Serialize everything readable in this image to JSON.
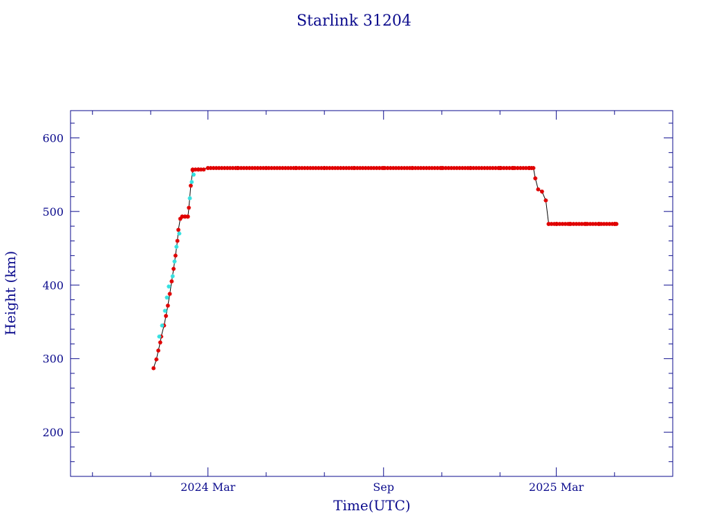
{
  "chart_data": {
    "type": "scatter",
    "title": "Starlink 31204",
    "xlabel": "Time(UTC)",
    "ylabel": "Height (km)",
    "x_tick_labels": [
      "2024 Mar",
      "Sep",
      "2025 Mar"
    ],
    "x_ticks": [
      "2024-03-01",
      "2024-09-01",
      "2025-03-01"
    ],
    "xlim": [
      "2023-10-09",
      "2025-07-01"
    ],
    "y_tick_labels": [
      "200",
      "300",
      "400",
      "500",
      "600"
    ],
    "y_ticks": [
      200,
      300,
      400,
      500,
      600
    ],
    "ylim": [
      140,
      637
    ],
    "grid": false,
    "colors": {
      "axis": "#0a0a8c",
      "primary_series": "#e00000",
      "secondary_series": "#33e0e0",
      "connector": "#000000"
    },
    "series": [
      {
        "marker_color": "#e00000",
        "points": [
          [
            "2024-01-04",
            287
          ],
          [
            "2024-01-07",
            299
          ],
          [
            "2024-01-09",
            311
          ],
          [
            "2024-01-11",
            322
          ],
          [
            "2024-01-12",
            330
          ],
          [
            "2024-01-15",
            345
          ],
          [
            "2024-01-17",
            358
          ],
          [
            "2024-01-19",
            372
          ],
          [
            "2024-01-21",
            388
          ],
          [
            "2024-01-23",
            405
          ],
          [
            "2024-01-25",
            422
          ],
          [
            "2024-01-27",
            440
          ],
          [
            "2024-01-29",
            460
          ],
          [
            "2024-01-30",
            475
          ],
          [
            "2024-02-01",
            490
          ],
          [
            "2024-02-03",
            493
          ],
          [
            "2024-02-06",
            493
          ],
          [
            "2024-02-09",
            493
          ],
          [
            "2024-02-10",
            505
          ],
          [
            "2024-02-12",
            535
          ],
          [
            "2024-02-14",
            556
          ],
          [
            "2024-02-20",
            557
          ],
          [
            "2024-03-01",
            559
          ],
          [
            "2024-04-01",
            559
          ],
          [
            "2024-05-01",
            559
          ],
          [
            "2024-06-01",
            559
          ],
          [
            "2024-07-01",
            559
          ],
          [
            "2024-08-01",
            559
          ],
          [
            "2024-09-01",
            559
          ],
          [
            "2024-10-01",
            559
          ],
          [
            "2024-11-01",
            559
          ],
          [
            "2024-12-01",
            559
          ],
          [
            "2025-01-01",
            559
          ],
          [
            "2025-01-15",
            559
          ],
          [
            "2025-02-01",
            559
          ],
          [
            "2025-02-05",
            559
          ],
          [
            "2025-02-07",
            545
          ],
          [
            "2025-02-10",
            530
          ],
          [
            "2025-02-14",
            527
          ],
          [
            "2025-02-18",
            515
          ],
          [
            "2025-02-21",
            483
          ],
          [
            "2025-03-01",
            483
          ],
          [
            "2025-03-15",
            483
          ],
          [
            "2025-04-01",
            483
          ],
          [
            "2025-04-15",
            483
          ],
          [
            "2025-05-01",
            483
          ],
          [
            "2025-05-03",
            483
          ]
        ]
      },
      {
        "marker_color": "#33e0e0",
        "points": [
          [
            "2024-01-10",
            330
          ],
          [
            "2024-01-13",
            345
          ],
          [
            "2024-01-16",
            365
          ],
          [
            "2024-01-18",
            383
          ],
          [
            "2024-01-20",
            398
          ],
          [
            "2024-01-24",
            412
          ],
          [
            "2024-01-26",
            432
          ],
          [
            "2024-01-28",
            452
          ],
          [
            "2024-01-31",
            470
          ],
          [
            "2024-02-11",
            518
          ],
          [
            "2024-02-13",
            540
          ],
          [
            "2024-02-15",
            550
          ]
        ]
      }
    ]
  }
}
